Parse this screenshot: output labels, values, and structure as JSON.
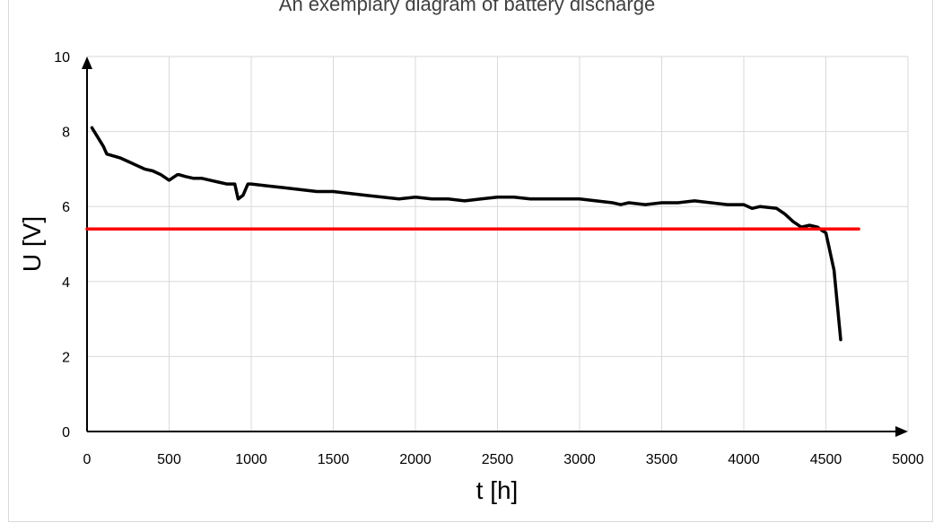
{
  "chart_data": {
    "type": "line",
    "title": "An exemplary diagram of battery discharge",
    "xlabel": "t [h]",
    "ylabel": "U [V]",
    "xlim": [
      0,
      5000
    ],
    "ylim": [
      0,
      10
    ],
    "xticks": [
      0,
      500,
      1000,
      1500,
      2000,
      2500,
      3000,
      3500,
      4000,
      4500,
      5000
    ],
    "yticks": [
      0,
      2,
      4,
      6,
      8,
      10
    ],
    "grid": true,
    "legend": "none",
    "series": [
      {
        "color": "#000000",
        "x": [
          30,
          100,
          120,
          200,
          250,
          300,
          350,
          400,
          450,
          500,
          550,
          560,
          600,
          650,
          700,
          750,
          800,
          850,
          900,
          920,
          950,
          980,
          1000,
          1100,
          1200,
          1300,
          1400,
          1500,
          1600,
          1700,
          1800,
          1900,
          2000,
          2100,
          2200,
          2300,
          2400,
          2500,
          2600,
          2700,
          2800,
          2900,
          3000,
          3100,
          3200,
          3250,
          3300,
          3400,
          3500,
          3600,
          3700,
          3800,
          3900,
          4000,
          4050,
          4100,
          4200,
          4250,
          4300,
          4350,
          4400,
          4450,
          4480,
          4500,
          4550,
          4590
        ],
        "y": [
          8.1,
          7.6,
          7.4,
          7.3,
          7.2,
          7.1,
          7.0,
          6.95,
          6.85,
          6.7,
          6.85,
          6.85,
          6.8,
          6.75,
          6.75,
          6.7,
          6.65,
          6.6,
          6.6,
          6.2,
          6.3,
          6.6,
          6.6,
          6.55,
          6.5,
          6.45,
          6.4,
          6.4,
          6.35,
          6.3,
          6.25,
          6.2,
          6.25,
          6.2,
          6.2,
          6.15,
          6.2,
          6.25,
          6.25,
          6.2,
          6.2,
          6.2,
          6.2,
          6.15,
          6.1,
          6.05,
          6.1,
          6.05,
          6.1,
          6.1,
          6.15,
          6.1,
          6.05,
          6.05,
          5.95,
          6.0,
          5.95,
          5.8,
          5.6,
          5.45,
          5.5,
          5.45,
          5.35,
          5.3,
          4.3,
          2.45
        ]
      },
      {
        "color": "#ff0000",
        "x": [
          0,
          4700
        ],
        "y": [
          5.4,
          5.4
        ]
      }
    ]
  }
}
